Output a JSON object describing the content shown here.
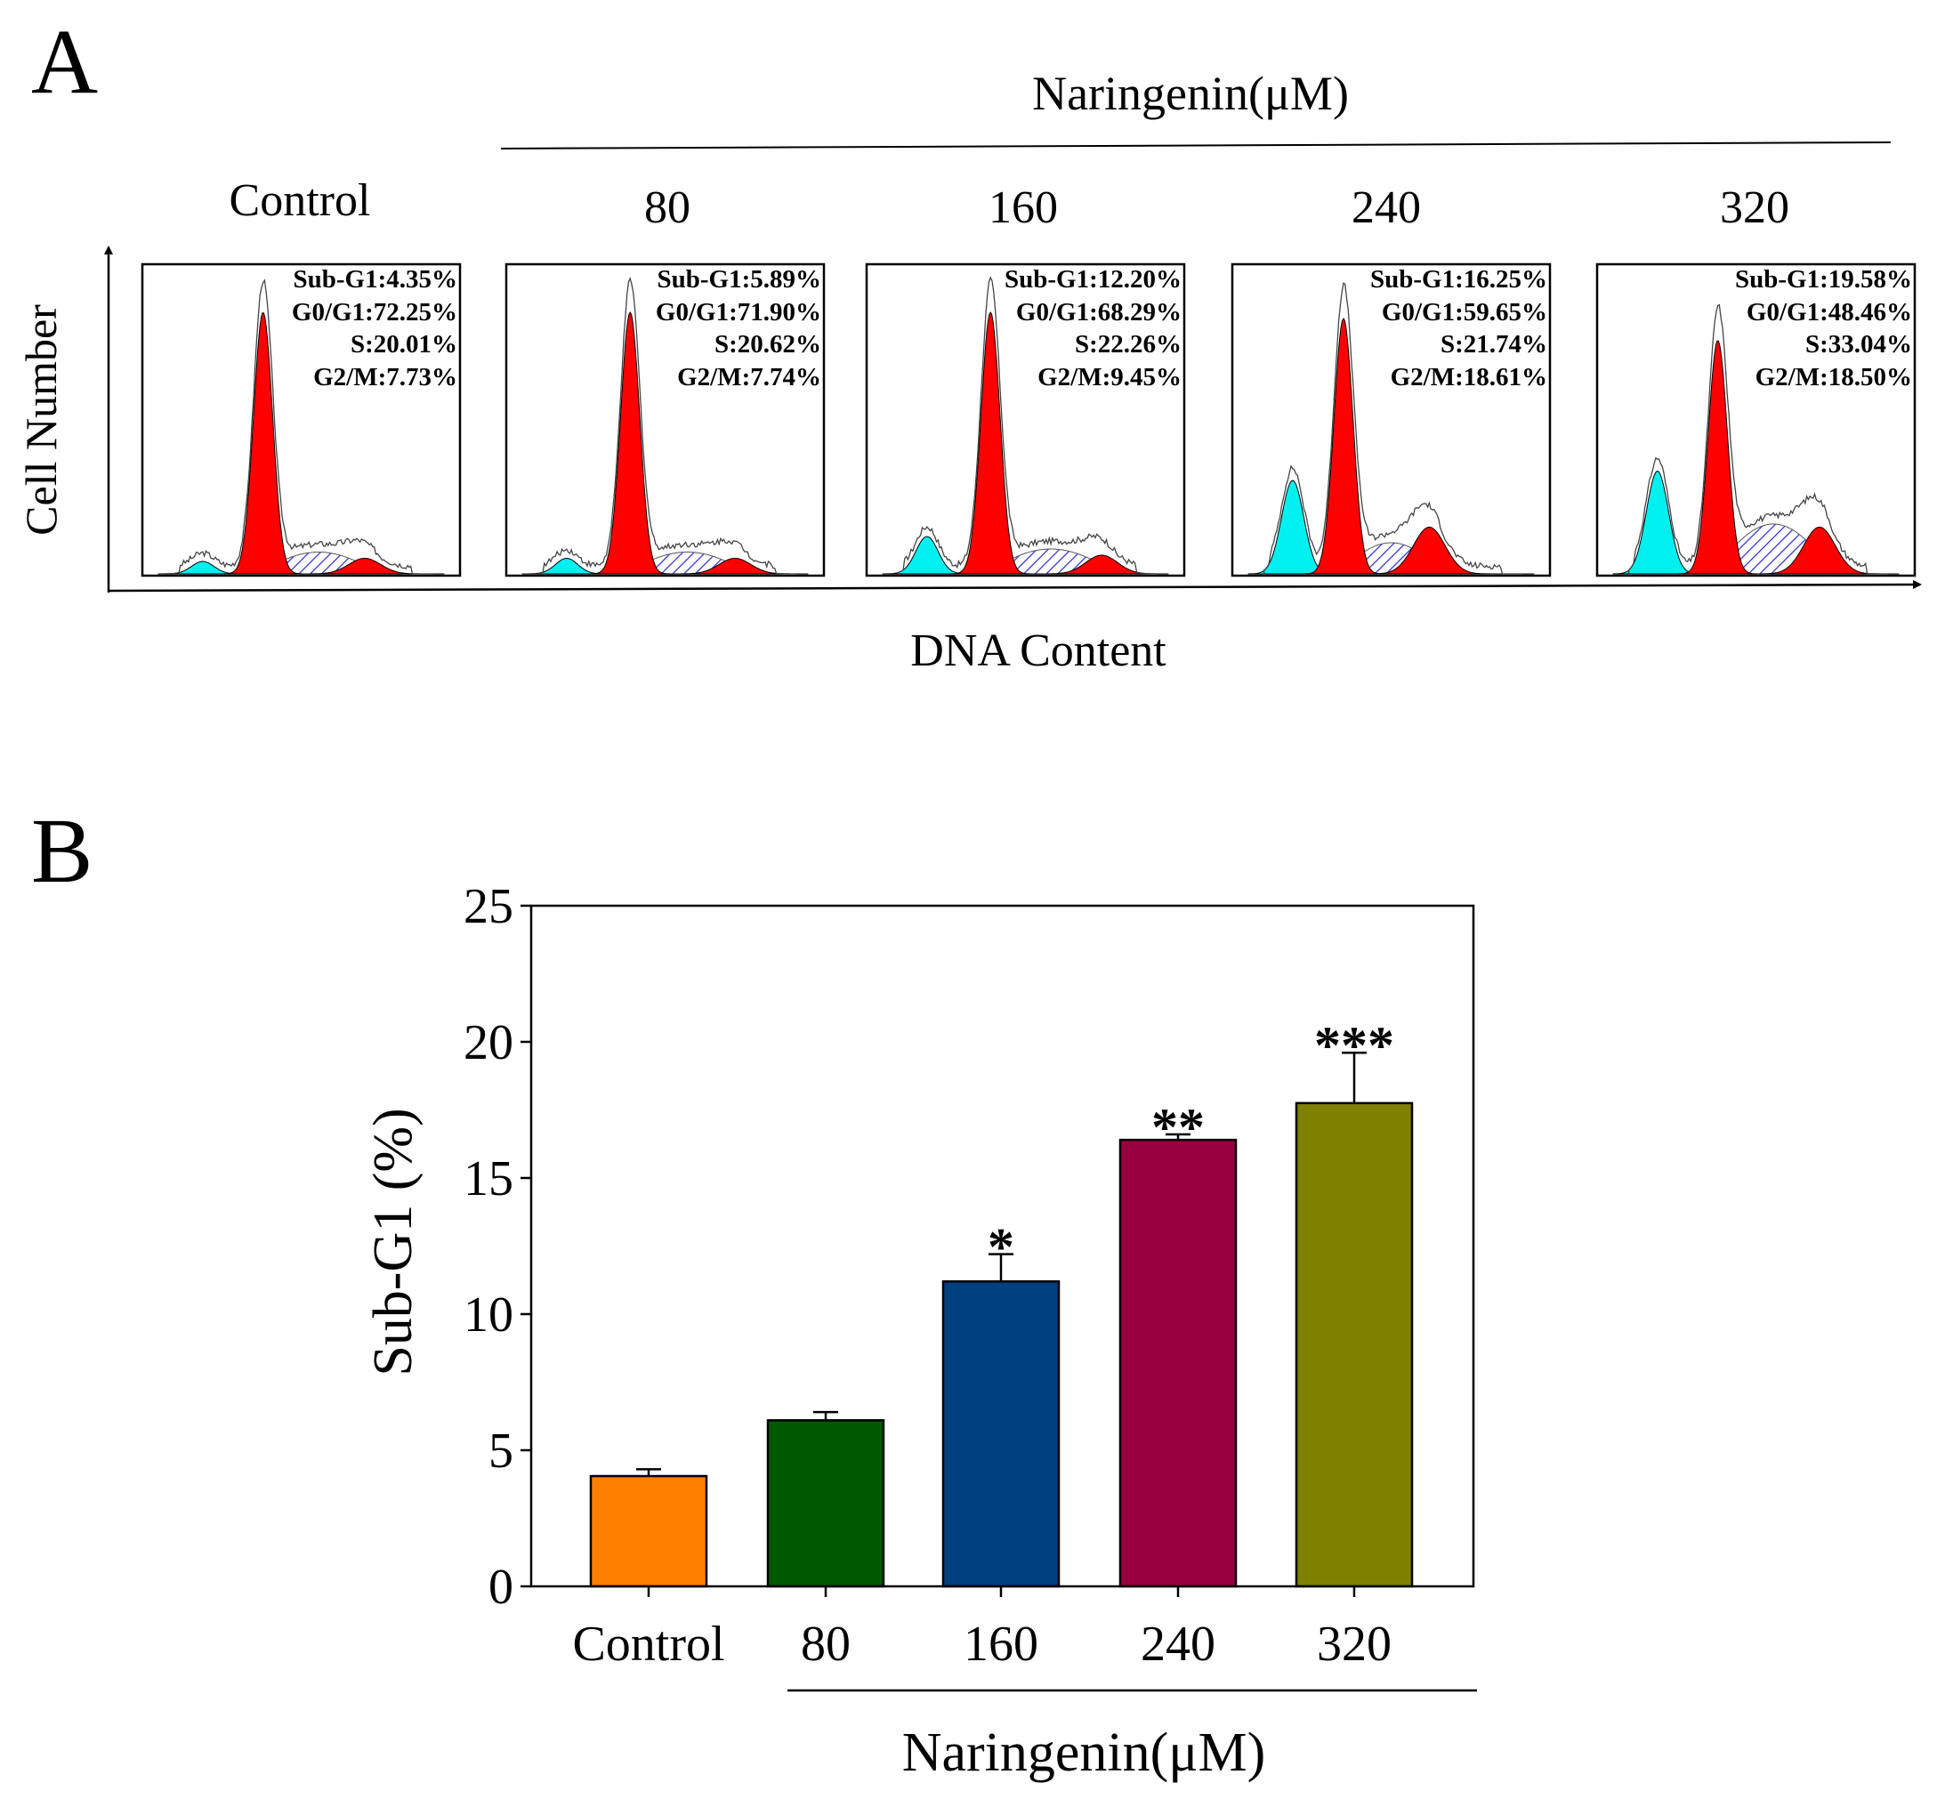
{
  "panel_a": {
    "letter": "A",
    "group_label": "Naringenin(μM)",
    "y_axis_label": "Cell Number",
    "x_axis_label": "DNA Content",
    "colors": {
      "sub_g1": "#00f0f0",
      "g0_g1": "#ff0000",
      "s": "#3030d0",
      "g2_m": "#ff0000"
    },
    "panels": [
      {
        "title": "Control",
        "sub_g1": "Sub-G1:4.35%",
        "g0_g1": "G0/G1:72.25%",
        "s": "S:20.01%",
        "g2_m": "G2/M:7.73%"
      },
      {
        "title": "80",
        "sub_g1": "Sub-G1:5.89%",
        "g0_g1": "G0/G1:71.90%",
        "s": "S:20.62%",
        "g2_m": "G2/M:7.74%"
      },
      {
        "title": "160",
        "sub_g1": "Sub-G1:12.20%",
        "g0_g1": "G0/G1:68.29%",
        "s": "S:22.26%",
        "g2_m": "G2/M:9.45%"
      },
      {
        "title": "240",
        "sub_g1": "Sub-G1:16.25%",
        "g0_g1": "G0/G1:59.65%",
        "s": "S:21.74%",
        "g2_m": "G2/M:18.61%"
      },
      {
        "title": "320",
        "sub_g1": "Sub-G1:19.58%",
        "g0_g1": "G0/G1:48.46%",
        "s": "S:33.04%",
        "g2_m": "G2/M:18.50%"
      }
    ]
  },
  "panel_b": {
    "letter": "B",
    "group_label": "Naringenin(μM)"
  },
  "chart_data": {
    "type": "bar",
    "title": "",
    "xlabel": "Naringenin(μM)",
    "ylabel": "Sub-G1 (%)",
    "categories": [
      "Control",
      "80",
      "160",
      "240",
      "320"
    ],
    "values": [
      4.05,
      6.1,
      11.2,
      16.4,
      17.75
    ],
    "errors": [
      0.25,
      0.3,
      1.0,
      0.2,
      1.85
    ],
    "significance": [
      "",
      "",
      "*",
      "**",
      "***"
    ],
    "colors": [
      "#ff8000",
      "#005800",
      "#003f80",
      "#98003f",
      "#808000"
    ],
    "ylim": [
      0,
      25
    ],
    "yticks": [
      0,
      5,
      10,
      15,
      20,
      25
    ],
    "grid": false
  }
}
